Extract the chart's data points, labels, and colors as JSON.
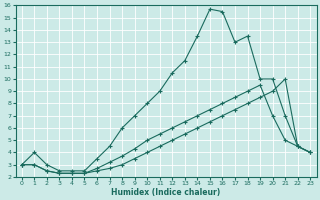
{
  "xlabel": "Humidex (Indice chaleur)",
  "xlim": [
    -0.5,
    23.5
  ],
  "ylim": [
    2,
    16
  ],
  "yticks": [
    2,
    3,
    4,
    5,
    6,
    7,
    8,
    9,
    10,
    11,
    12,
    13,
    14,
    15,
    16
  ],
  "xticks": [
    0,
    1,
    2,
    3,
    4,
    5,
    6,
    7,
    8,
    9,
    10,
    11,
    12,
    13,
    14,
    15,
    16,
    17,
    18,
    19,
    20,
    21,
    22,
    23
  ],
  "bg_color": "#cceae7",
  "line_color": "#1a6b5e",
  "grid_color": "#ffffff",
  "line1_x": [
    0,
    1,
    2,
    3,
    4,
    5,
    6,
    7,
    8,
    9,
    10,
    11,
    12,
    13,
    14,
    15,
    16,
    17,
    18,
    19,
    20,
    21,
    22,
    23
  ],
  "line1_y": [
    3,
    4,
    3,
    2.5,
    2.5,
    2.5,
    3.5,
    4.5,
    6,
    7,
    8,
    9,
    10.5,
    11.5,
    13.5,
    15.7,
    15.5,
    13,
    13.5,
    10,
    10,
    7,
    4.5,
    4
  ],
  "line2_x": [
    0,
    1,
    2,
    3,
    4,
    5,
    6,
    7,
    8,
    9,
    10,
    11,
    12,
    13,
    14,
    15,
    16,
    17,
    18,
    19,
    20,
    21,
    22,
    23
  ],
  "line2_y": [
    3,
    3,
    2.5,
    2.3,
    2.3,
    2.3,
    2.7,
    3.2,
    3.7,
    4.3,
    5,
    5.5,
    6,
    6.5,
    7,
    7.5,
    8,
    8.5,
    9,
    9.5,
    7,
    5,
    4.5,
    4
  ],
  "line3_x": [
    0,
    1,
    2,
    3,
    4,
    5,
    6,
    7,
    8,
    9,
    10,
    11,
    12,
    13,
    14,
    15,
    16,
    17,
    18,
    19,
    20,
    21,
    22,
    23
  ],
  "line3_y": [
    3,
    3,
    2.5,
    2.3,
    2.3,
    2.3,
    2.5,
    2.7,
    3,
    3.5,
    4,
    4.5,
    5,
    5.5,
    6,
    6.5,
    7,
    7.5,
    8,
    8.5,
    9,
    10,
    4.5,
    4
  ]
}
